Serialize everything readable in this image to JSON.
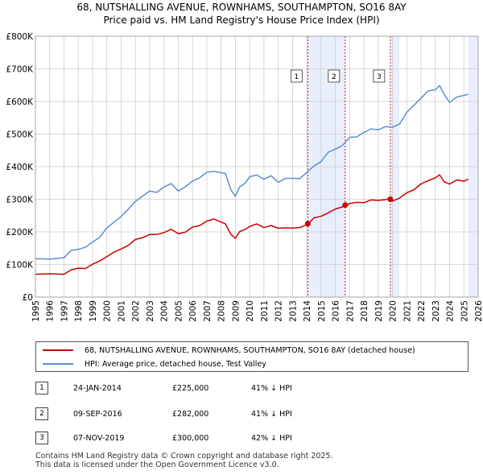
{
  "chart_data": {
    "type": "line",
    "title": "68, NUTSHALLING AVENUE, ROWNHAMS, SOUTHAMPTON, SO16 8AY",
    "subtitle": "Price paid vs. HM Land Registry's House Price Index (HPI)",
    "xlabel": "",
    "ylabel": "",
    "xlim": [
      1995,
      2026
    ],
    "ylim": [
      0,
      800000
    ],
    "x_ticks": [
      "1995",
      "1996",
      "1997",
      "1998",
      "1999",
      "2000",
      "2001",
      "2002",
      "2003",
      "2004",
      "2005",
      "2006",
      "2007",
      "2008",
      "2009",
      "2010",
      "2011",
      "2012",
      "2013",
      "2014",
      "2015",
      "2016",
      "2017",
      "2018",
      "2019",
      "2020",
      "2021",
      "2022",
      "2023",
      "2024",
      "2025",
      "2026"
    ],
    "y_ticks": [
      {
        "value": 0,
        "label": "£0"
      },
      {
        "value": 100000,
        "label": "£100K"
      },
      {
        "value": 200000,
        "label": "£200K"
      },
      {
        "value": 300000,
        "label": "£300K"
      },
      {
        "value": 400000,
        "label": "£400K"
      },
      {
        "value": 500000,
        "label": "£500K"
      },
      {
        "value": 600000,
        "label": "£600K"
      },
      {
        "value": 700000,
        "label": "£700K"
      },
      {
        "value": 800000,
        "label": "£800K"
      }
    ],
    "grid": true,
    "series": [
      {
        "name": "68, NUTSHALLING AVENUE, ROWNHAMS, SOUTHAMPTON, SO16 8AY (detached house)",
        "color": "#cc0000",
        "x": [
          1995.0,
          1996.0,
          1997.0,
          1997.5,
          1998.0,
          1998.5,
          1999.0,
          1999.5,
          2000.0,
          2000.5,
          2001.0,
          2001.5,
          2002.0,
          2002.5,
          2003.0,
          2003.5,
          2004.0,
          2004.5,
          2005.0,
          2005.5,
          2006.0,
          2006.5,
          2007.0,
          2007.5,
          2008.0,
          2008.3,
          2008.7,
          2009.0,
          2009.3,
          2009.7,
          2010.0,
          2010.5,
          2011.0,
          2011.5,
          2012.0,
          2012.5,
          2013.0,
          2013.5,
          2014.07,
          2014.5,
          2015.0,
          2015.5,
          2016.0,
          2016.69,
          2017.0,
          2017.5,
          2018.0,
          2018.5,
          2019.0,
          2019.5,
          2019.85,
          2020.0,
          2020.5,
          2021.0,
          2021.5,
          2022.0,
          2022.5,
          2023.0,
          2023.3,
          2023.6,
          2024.0,
          2024.5,
          2025.0,
          2025.3
        ],
        "y": [
          70000,
          69000,
          73000,
          82000,
          88000,
          90000,
          98000,
          112000,
          125000,
          135000,
          150000,
          158000,
          175000,
          185000,
          190000,
          192000,
          200000,
          205000,
          196000,
          200000,
          212000,
          222000,
          232000,
          238000,
          233000,
          222000,
          192000,
          182000,
          198000,
          210000,
          217000,
          222000,
          216000,
          218000,
          210000,
          215000,
          209000,
          214000,
          225000,
          240000,
          250000,
          258000,
          268000,
          282000,
          285000,
          290000,
          292000,
          295000,
          298000,
          300000,
          300000,
          297000,
          303000,
          318000,
          332000,
          345000,
          357000,
          368000,
          372000,
          356000,
          347000,
          357000,
          358000,
          362000
        ]
      },
      {
        "name": "HPI: Average price, detached house, Test Valley",
        "color": "#5b8fd4",
        "x": [
          1995.0,
          1996.0,
          1997.0,
          1997.5,
          1998.0,
          1998.5,
          1999.0,
          1999.5,
          2000.0,
          2000.5,
          2001.0,
          2001.5,
          2002.0,
          2002.5,
          2003.0,
          2003.5,
          2004.0,
          2004.5,
          2005.0,
          2005.5,
          2006.0,
          2006.5,
          2007.0,
          2007.5,
          2008.0,
          2008.3,
          2008.7,
          2009.0,
          2009.3,
          2009.7,
          2010.0,
          2010.5,
          2011.0,
          2011.5,
          2012.0,
          2012.5,
          2013.0,
          2013.5,
          2014.0,
          2014.5,
          2015.0,
          2015.5,
          2016.0,
          2016.5,
          2017.0,
          2017.5,
          2018.0,
          2018.5,
          2019.0,
          2019.5,
          2020.0,
          2020.5,
          2021.0,
          2021.5,
          2022.0,
          2022.5,
          2023.0,
          2023.3,
          2023.6,
          2024.0,
          2024.5,
          2025.0,
          2025.3
        ],
        "y": [
          118000,
          117000,
          124000,
          138000,
          150000,
          153000,
          165000,
          188000,
          210000,
          228000,
          252000,
          265000,
          295000,
          312000,
          320000,
          325000,
          337000,
          345000,
          330000,
          335000,
          355000,
          370000,
          378000,
          388000,
          383000,
          375000,
          332000,
          308000,
          335000,
          355000,
          365000,
          375000,
          365000,
          367000,
          355000,
          365000,
          360000,
          368000,
          380000,
          400000,
          420000,
          440000,
          455000,
          468000,
          485000,
          495000,
          505000,
          512000,
          518000,
          520000,
          520000,
          535000,
          562000,
          590000,
          612000,
          628000,
          640000,
          648000,
          620000,
          602000,
          610000,
          618000,
          622000
        ]
      }
    ],
    "sale_markers": [
      {
        "label": "1",
        "x": 2014.07,
        "y": 225000
      },
      {
        "label": "2",
        "x": 2016.69,
        "y": 282000
      },
      {
        "label": "3",
        "x": 2019.85,
        "y": 300000
      }
    ],
    "shaded_regions": [
      {
        "from": 2014.07,
        "to": 2016.69
      },
      {
        "from": 2019.85,
        "to": 2020.5
      },
      {
        "from": 2025.3,
        "to": 2026.0
      }
    ]
  },
  "legend": {
    "property_label": "68, NUTSHALLING AVENUE, ROWNHAMS, SOUTHAMPTON, SO16 8AY (detached house)",
    "hpi_label": "HPI: Average price, detached house, Test Valley"
  },
  "sales": [
    {
      "num": "1",
      "date": "24-JAN-2014",
      "price": "£225,000",
      "pct": "41% ↓ HPI"
    },
    {
      "num": "2",
      "date": "09-SEP-2016",
      "price": "£282,000",
      "pct": "41% ↓ HPI"
    },
    {
      "num": "3",
      "date": "07-NOV-2019",
      "price": "£300,000",
      "pct": "42% ↓ HPI"
    }
  ],
  "footer": {
    "line1": "Contains HM Land Registry data © Crown copyright and database right 2025.",
    "line2": "This data is licensed under the Open Government Licence v3.0."
  },
  "colors": {
    "property_line": "#cc0000",
    "hpi_line": "#5b8fd4",
    "shade": "#e8eefb",
    "grid": "#cccccc"
  }
}
